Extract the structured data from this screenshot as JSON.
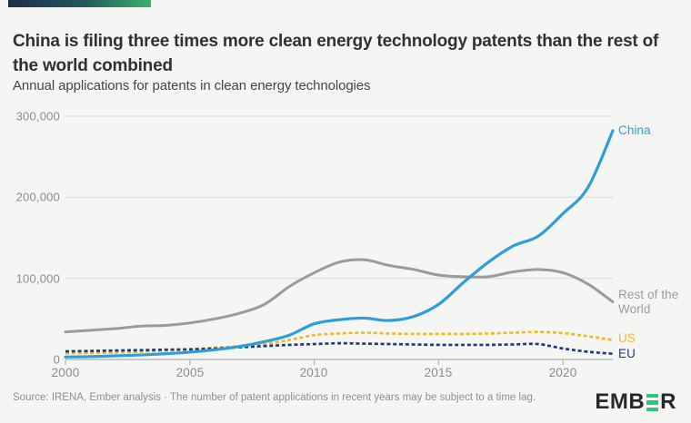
{
  "header": {
    "title": "China is filing three times more clean energy technology patents than the rest of the world combined",
    "subtitle": "Annual applications for patents in clean energy technologies"
  },
  "footer": {
    "source_text": "Source: IRENA, Ember analysis · The number of patent applications in recent years may be subject to a time lag.",
    "logo": {
      "name": "EMBER",
      "prefix": "EMB",
      "suffix": "R",
      "green": "#2ec87c",
      "dark": "#25292e"
    }
  },
  "brand": {
    "gradient_start": "#1e2c4e",
    "gradient_end": "#3cb06e",
    "background": "#f5f5f3"
  },
  "chart_data": {
    "type": "line",
    "title": "China is filing three times more clean energy technology patents than the rest of the world combined",
    "subtitle": "Annual applications for patents in clean energy technologies",
    "xlabel": "",
    "ylabel": "",
    "xlim": [
      2000,
      2022
    ],
    "ylim": [
      0,
      300000
    ],
    "xticks": [
      2000,
      2005,
      2010,
      2015,
      2020
    ],
    "xtick_labels": [
      "2000",
      "2005",
      "2010",
      "2015",
      "2020"
    ],
    "yticks": [
      0,
      100000,
      200000,
      300000
    ],
    "ytick_labels": [
      "0",
      "100,000",
      "200,000",
      "300,000"
    ],
    "grid": "horizontal",
    "grid_color": "#dddddd",
    "axis_color": "#b9b9b9",
    "legend_position": "end-of-line-labels",
    "x": [
      2000,
      2001,
      2002,
      2003,
      2004,
      2005,
      2006,
      2007,
      2008,
      2009,
      2010,
      2011,
      2012,
      2013,
      2014,
      2015,
      2016,
      2017,
      2018,
      2019,
      2020,
      2021,
      2022
    ],
    "series": [
      {
        "name": "China",
        "color": "#2d9edb",
        "style": "solid",
        "values": [
          3000,
          3500,
          4500,
          5500,
          7000,
          9000,
          12000,
          16000,
          22000,
          30000,
          44000,
          49000,
          51000,
          48000,
          53000,
          68000,
          95000,
          120000,
          140000,
          152000,
          180000,
          212000,
          282000
        ]
      },
      {
        "name": "Rest of the World",
        "color": "#9b9b9b",
        "style": "solid",
        "values": [
          34000,
          36000,
          38000,
          41000,
          42000,
          45000,
          50000,
          57000,
          68000,
          90000,
          107000,
          120000,
          123000,
          116000,
          111000,
          104000,
          102000,
          102000,
          108000,
          111000,
          107000,
          93000,
          71000
        ]
      },
      {
        "name": "US",
        "color": "#e9bc27",
        "style": "dashed",
        "values": [
          7500,
          8000,
          8500,
          9500,
          11000,
          12500,
          14500,
          16500,
          19000,
          24000,
          30000,
          32000,
          33000,
          32000,
          31500,
          31500,
          31500,
          32000,
          33000,
          34000,
          32500,
          28500,
          24000
        ]
      },
      {
        "name": "EU",
        "color": "#1e3d78",
        "style": "dashed",
        "values": [
          10000,
          10500,
          11000,
          11500,
          12000,
          12500,
          13500,
          15000,
          16500,
          18000,
          19000,
          20000,
          19500,
          19000,
          18500,
          18000,
          18000,
          18000,
          18500,
          19000,
          13500,
          9500,
          7000
        ]
      }
    ]
  }
}
